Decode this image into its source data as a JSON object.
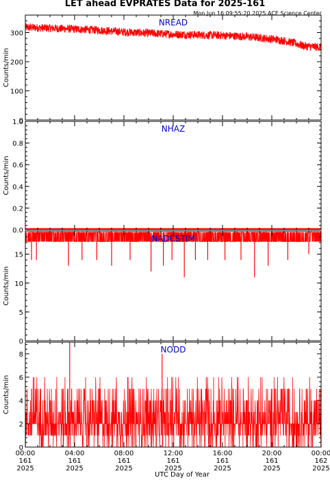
{
  "title": "LET ahead EVPRATES Data for 2025-161",
  "timestamp": "Mon Jun 16 09:55:20 2025 ACE Science Center",
  "xlabel": "UTC Day of Year",
  "colors": {
    "series": "#ff0000",
    "panel_label": "#0000cc",
    "axis": "#000000"
  },
  "x_ticks": [
    {
      "time": "00:00",
      "doy": "161",
      "year": "2025"
    },
    {
      "time": "04:00",
      "doy": "161",
      "year": "2025"
    },
    {
      "time": "08:00",
      "doy": "161",
      "year": "2025"
    },
    {
      "time": "12:00",
      "doy": "161",
      "year": "2025"
    },
    {
      "time": "16:00",
      "doy": "161",
      "year": "2025"
    },
    {
      "time": "20:00",
      "doy": "161",
      "year": "2025"
    },
    {
      "time": "00:00",
      "doy": "162",
      "year": "2025"
    }
  ],
  "chart_data": [
    {
      "type": "line",
      "title": "NREAD",
      "ylabel": "Counts/min",
      "xlim": [
        0,
        24
      ],
      "ylim": [
        0,
        360
      ],
      "yticks": [
        0,
        100,
        200,
        300
      ],
      "series": [
        {
          "x": [
            0,
            2,
            4,
            6,
            8,
            10,
            12,
            14,
            16,
            18,
            20,
            21,
            22,
            22.5,
            23,
            24
          ],
          "values": [
            318,
            315,
            312,
            308,
            302,
            298,
            294,
            292,
            290,
            286,
            278,
            272,
            262,
            255,
            252,
            250
          ]
        }
      ]
    },
    {
      "type": "line",
      "title": "NHAZ",
      "ylabel": "Counts/min",
      "xlim": [
        0,
        24
      ],
      "ylim": [
        0,
        1.0
      ],
      "yticks": [
        0.0,
        0.2,
        0.4,
        0.6,
        0.8,
        1.0
      ],
      "series": [
        {
          "x": [
            0,
            24
          ],
          "values": [
            0,
            0
          ]
        }
      ]
    },
    {
      "type": "line",
      "title": "NADCSTIM",
      "ylabel": "Counts/min",
      "xlim": [
        0,
        24
      ],
      "ylim": [
        0,
        19
      ],
      "yticks": [
        0,
        5,
        10,
        15
      ],
      "series": [
        {
          "baseline": 18,
          "dips_x": [
            0.5,
            0.9,
            3.5,
            4.6,
            5.8,
            7.0,
            8.5,
            10.2,
            11.2,
            11.9,
            12.9,
            13.8,
            14.8,
            16.2,
            17.5,
            18.6,
            19.7,
            21.3,
            23.0
          ],
          "dips_y": [
            14,
            14,
            13,
            14,
            14,
            13,
            14,
            12,
            13,
            14,
            11,
            14,
            14,
            14,
            14,
            11,
            13,
            14,
            15
          ]
        }
      ]
    },
    {
      "type": "line",
      "title": "NODD",
      "ylabel": "Counts/min",
      "xlim": [
        0,
        24
      ],
      "ylim": [
        0,
        9
      ],
      "yticks": [
        0,
        2,
        4,
        6,
        8
      ],
      "series": [
        {
          "range": [
            0,
            6
          ],
          "typical": 2,
          "spikes_x": [
            3.6,
            11.1
          ],
          "spikes_y": [
            9,
            8
          ]
        }
      ]
    }
  ]
}
